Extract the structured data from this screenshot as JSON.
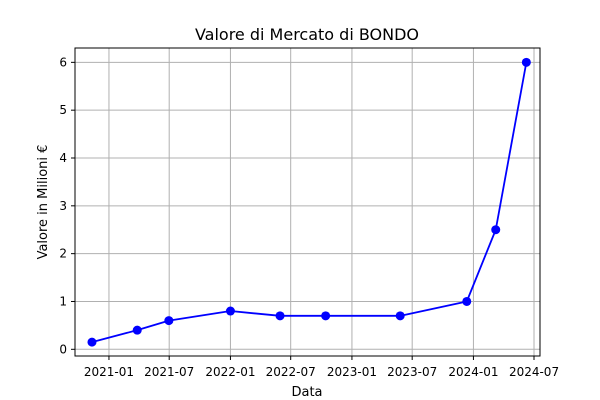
{
  "chart_data": {
    "type": "line",
    "title": "Valore di Mercato di BONDO",
    "xlabel": "Data",
    "ylabel": "Valore in Milioni €",
    "x_tick_labels": [
      "2021-01",
      "2021-07",
      "2022-01",
      "2022-07",
      "2023-01",
      "2023-07",
      "2024-01",
      "2024-07"
    ],
    "x_ticks": [
      "2021-01-01",
      "2021-07-01",
      "2022-01-01",
      "2022-07-01",
      "2023-01-01",
      "2023-07-01",
      "2024-01-01",
      "2024-07-01"
    ],
    "y_tick_labels": [
      "0",
      "1",
      "2",
      "3",
      "4",
      "5",
      "6"
    ],
    "y_ticks": [
      0,
      1,
      2,
      3,
      4,
      5,
      6
    ],
    "xlim": [
      "2020-09-21",
      "2024-07-19"
    ],
    "ylim": [
      -0.14,
      6.3
    ],
    "grid": true,
    "series": [
      {
        "color": "#0000ff",
        "marker": "circle",
        "x": [
          "2020-11-11",
          "2021-03-27",
          "2021-06-30",
          "2022-01-01",
          "2022-05-30",
          "2022-10-14",
          "2023-05-26",
          "2023-12-12",
          "2024-03-08",
          "2024-06-08"
        ],
        "y": [
          0.15,
          0.4,
          0.6,
          0.8,
          0.7,
          0.7,
          0.7,
          1.0,
          2.5,
          6.0
        ]
      }
    ]
  }
}
